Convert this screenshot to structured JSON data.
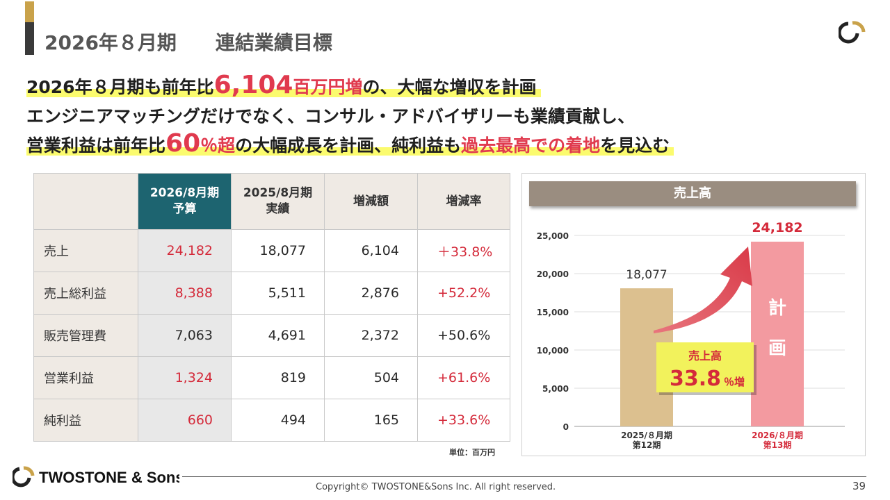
{
  "header": {
    "title": "2026年８月期　　連結業績目標"
  },
  "headline": {
    "line1": {
      "a": "2026年８月期も前年比",
      "b_num": "6,104",
      "b_unit": "百万円増",
      "c": "の、大幅な増収を計画"
    },
    "line2": "エンジニアマッチングだけでなく、コンサル・アドバイザリーも業績貢献し、",
    "line3": {
      "a": "営業利益は前年比",
      "b_num": "60",
      "b_unit": "％超",
      "c": "の大幅成長を計画、純利益も",
      "d": "過去最高での着地",
      "e": "を見込む"
    }
  },
  "table": {
    "headers": [
      "",
      "2026/8月期\n予算",
      "2025/8月期\n実績",
      "増減額",
      "増減率"
    ],
    "rows": [
      {
        "label": "売上",
        "budget": "24,182",
        "actual": "18,077",
        "diff": "6,104",
        "rate": "＋33.8%",
        "budget_red": true,
        "rate_red": true
      },
      {
        "label": "売上総利益",
        "budget": "8,388",
        "actual": "5,511",
        "diff": "2,876",
        "rate": "+52.2%",
        "budget_red": true,
        "rate_red": true
      },
      {
        "label": "販売管理費",
        "budget": "7,063",
        "actual": "4,691",
        "diff": "2,372",
        "rate": "+50.6%",
        "budget_red": false,
        "rate_red": false
      },
      {
        "label": "営業利益",
        "budget": "1,324",
        "actual": "819",
        "diff": "504",
        "rate": "+61.6%",
        "budget_red": true,
        "rate_red": true
      },
      {
        "label": "純利益",
        "budget": "660",
        "actual": "494",
        "diff": "165",
        "rate": "+33.6%",
        "budget_red": true,
        "rate_red": true
      }
    ],
    "unit_note": "単位：百万円"
  },
  "chart_data": {
    "type": "bar",
    "title": "売上高",
    "categories": [
      {
        "line1": "2025/８月期",
        "line2": "第12期"
      },
      {
        "line1": "2026/８月期",
        "line2": "第13期"
      }
    ],
    "values": [
      18077,
      24182
    ],
    "value_labels": [
      "18,077",
      "24,182"
    ],
    "bar_colors": [
      "#dcc08f",
      "#f39aa0"
    ],
    "category_label_colors": [
      "#333333",
      "#d42a3a"
    ],
    "value_label_colors": [
      "#333333",
      "#d42a3a"
    ],
    "ylim": [
      0,
      25000
    ],
    "yticks": [
      0,
      5000,
      10000,
      15000,
      20000,
      25000
    ],
    "ytick_labels": [
      "0",
      "5,000",
      "10,000",
      "15,000",
      "20,000",
      "25,000"
    ],
    "grid": true,
    "bar_annotation": "計　画",
    "callout": {
      "label": "売上高",
      "value": "33.8",
      "suffix": "％増"
    }
  },
  "footer": {
    "logo_text": "TWOSTONE & Sons",
    "copyright": "Copyright© TWOSTONE&Sons Inc. All right reserved.",
    "page_number": "39"
  },
  "colors": {
    "accent_gold": "#c9a24a",
    "table_header_highlight": "#1d6470",
    "red": "#d42a3a",
    "highlighter": "#fbfb6e"
  }
}
